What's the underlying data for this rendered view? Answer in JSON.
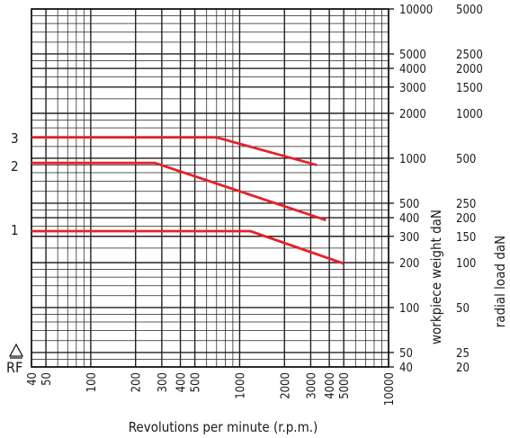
{
  "chart_data": {
    "type": "line",
    "title": "",
    "xlabel": "Revolutions per minute (r.p.m.)",
    "ylabel": "workpiece weight daN",
    "y2label": "radial load daN",
    "xscale": "log",
    "yscale": "log",
    "xlim": [
      40,
      10000
    ],
    "ylim": [
      40,
      10000
    ],
    "grid": true,
    "x_ticks": [
      "40",
      "50",
      "100",
      "200",
      "300",
      "400",
      "500",
      "1000",
      "2000",
      "3000",
      "4000",
      "5000",
      "10000"
    ],
    "y_ticks": [
      "10000",
      "5000",
      "4000",
      "3000",
      "2000",
      "1000",
      "500",
      "400",
      "300",
      "200",
      "100",
      "50",
      "40"
    ],
    "y2_ticks": [
      "5000",
      "2500",
      "2000",
      "1500",
      "1000",
      "500",
      "250",
      "200",
      "150",
      "100",
      "50",
      "25",
      "20"
    ],
    "row_labels": [
      "3",
      "2",
      "1"
    ],
    "corner_label": "RF",
    "series": [
      {
        "label": "3",
        "color": "#e8202a",
        "x": [
          40,
          700,
          3300
        ],
        "y": [
          1380,
          1380,
          900
        ]
      },
      {
        "label": "2",
        "color": "#e8202a",
        "x": [
          40,
          270,
          3800
        ],
        "y": [
          930,
          930,
          385
        ]
      },
      {
        "label": "1",
        "color": "#e8202a",
        "x": [
          40,
          1180,
          5000
        ],
        "y": [
          325,
          325,
          197
        ]
      }
    ]
  }
}
